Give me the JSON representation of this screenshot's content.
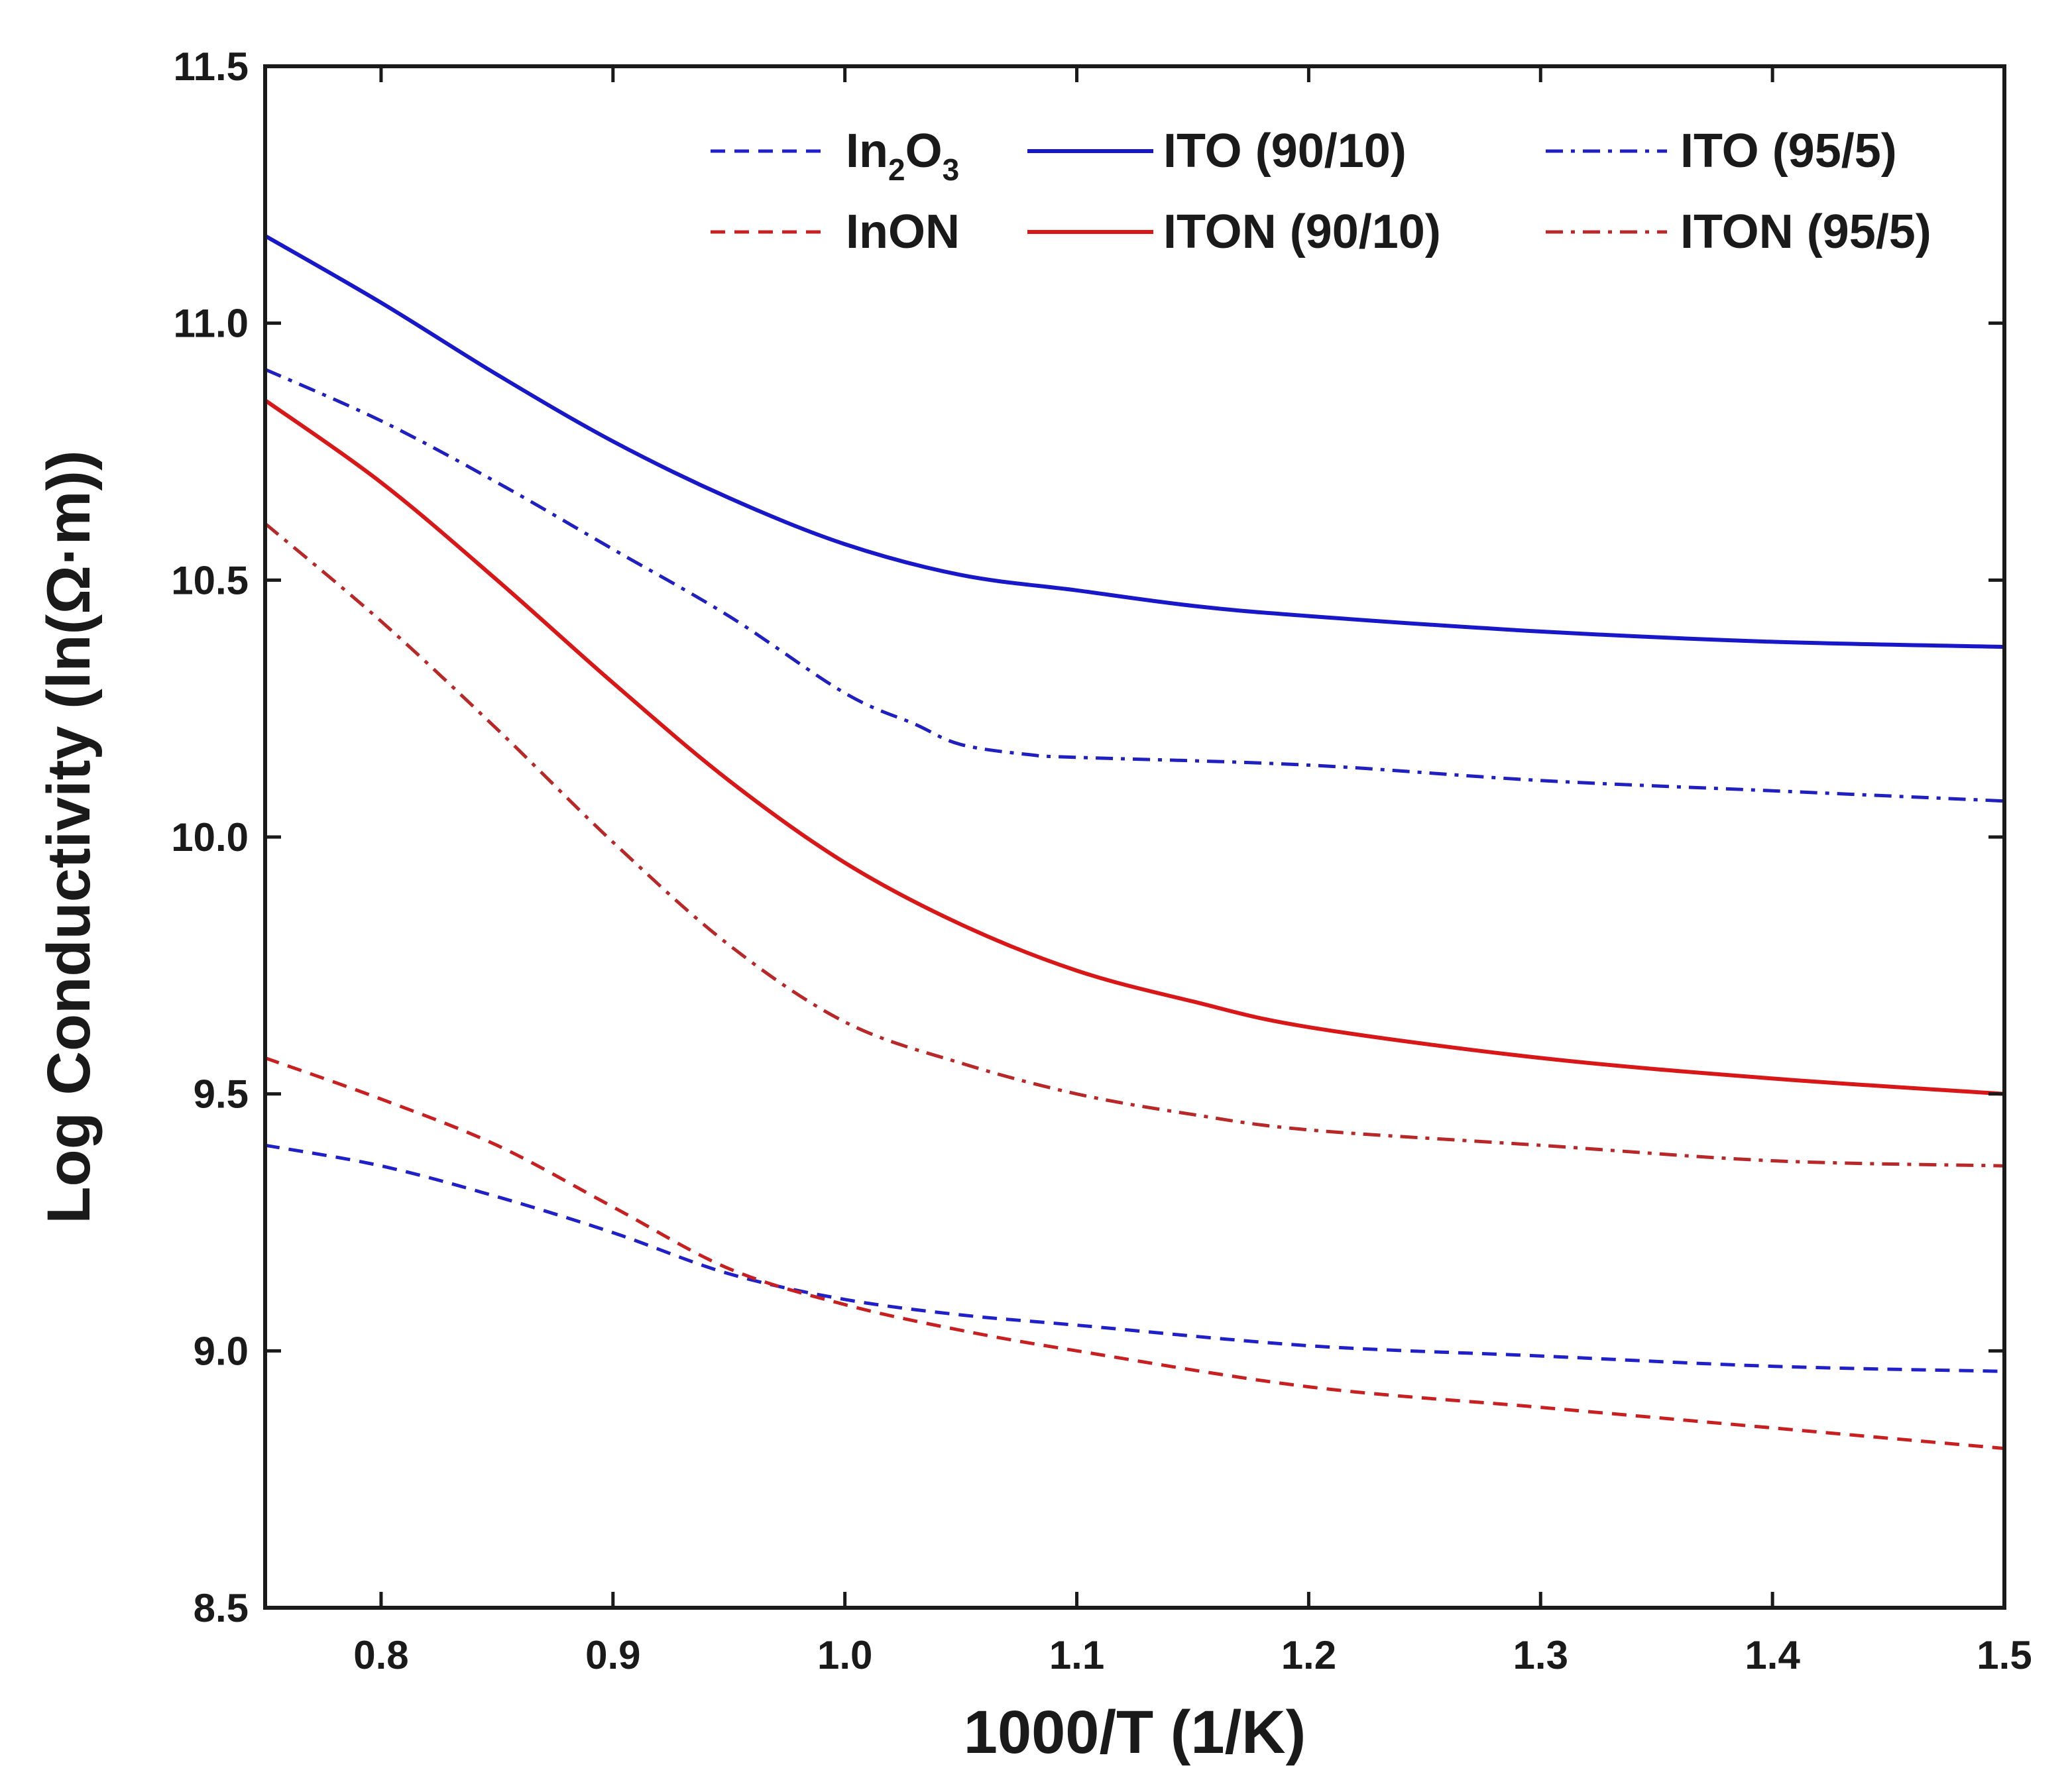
{
  "chart_data": {
    "type": "line",
    "title": "",
    "xlabel": "1000/T (1/K)",
    "ylabel": "Log Conductivity (ln(Ω·m))",
    "xlim": [
      0.75,
      1.5
    ],
    "ylim": [
      8.5,
      11.5
    ],
    "x_ticks": [
      "0.8",
      "0.9",
      "1.0",
      "1.1",
      "1.2",
      "1.3",
      "1.4",
      "1.5"
    ],
    "y_ticks": [
      "8.5",
      "9.0",
      "9.5",
      "10.0",
      "10.5",
      "11.0",
      "11.5"
    ],
    "legend_position": "top-right",
    "series": [
      {
        "name": "In2O3",
        "label_main": "In",
        "label_sub1": "2",
        "label_mid": "O",
        "label_sub2": "3",
        "color": "#2020c8",
        "style": "dashed",
        "x": [
          0.75,
          0.8,
          0.85,
          0.9,
          0.95,
          1.0,
          1.05,
          1.1,
          1.2,
          1.3,
          1.4,
          1.5
        ],
        "y": [
          9.4,
          9.36,
          9.3,
          9.23,
          9.15,
          9.1,
          9.07,
          9.05,
          9.01,
          8.99,
          8.97,
          8.96
        ]
      },
      {
        "name": "InON",
        "color": "#c82020",
        "style": "dashed",
        "x": [
          0.75,
          0.8,
          0.85,
          0.9,
          0.95,
          1.0,
          1.05,
          1.1,
          1.2,
          1.3,
          1.4,
          1.5
        ],
        "y": [
          9.57,
          9.49,
          9.4,
          9.28,
          9.16,
          9.09,
          9.04,
          9.0,
          8.93,
          8.89,
          8.85,
          8.81
        ]
      },
      {
        "name": "ITO (90/10)",
        "color": "#1818c8",
        "style": "solid",
        "x": [
          0.75,
          0.8,
          0.85,
          0.9,
          0.95,
          1.0,
          1.05,
          1.1,
          1.15,
          1.2,
          1.3,
          1.4,
          1.5
        ],
        "y": [
          11.17,
          11.04,
          10.9,
          10.77,
          10.66,
          10.57,
          10.51,
          10.48,
          10.45,
          10.43,
          10.4,
          10.38,
          10.37
        ]
      },
      {
        "name": "ITON (90/10)",
        "color": "#d81818",
        "style": "solid",
        "x": [
          0.75,
          0.8,
          0.85,
          0.9,
          0.95,
          1.0,
          1.05,
          1.1,
          1.15,
          1.2,
          1.3,
          1.4,
          1.5
        ],
        "y": [
          10.85,
          10.69,
          10.5,
          10.3,
          10.11,
          9.95,
          9.83,
          9.74,
          9.68,
          9.63,
          9.57,
          9.53,
          9.5
        ]
      },
      {
        "name": "ITO (95/5)",
        "color": "#2020c0",
        "style": "dashdot",
        "x": [
          0.75,
          0.8,
          0.85,
          0.9,
          0.95,
          1.0,
          1.03,
          1.05,
          1.08,
          1.1,
          1.2,
          1.3,
          1.4,
          1.5
        ],
        "y": [
          10.91,
          10.81,
          10.69,
          10.56,
          10.43,
          10.28,
          10.22,
          10.18,
          10.16,
          10.155,
          10.14,
          10.11,
          10.09,
          10.07
        ]
      },
      {
        "name": "ITON (95/5)",
        "color": "#b82828",
        "style": "dashdot",
        "x": [
          0.75,
          0.8,
          0.85,
          0.9,
          0.95,
          1.0,
          1.05,
          1.1,
          1.15,
          1.2,
          1.3,
          1.4,
          1.5
        ],
        "y": [
          10.61,
          10.42,
          10.21,
          9.99,
          9.79,
          9.64,
          9.56,
          9.5,
          9.46,
          9.43,
          9.4,
          9.37,
          9.36
        ]
      }
    ]
  }
}
